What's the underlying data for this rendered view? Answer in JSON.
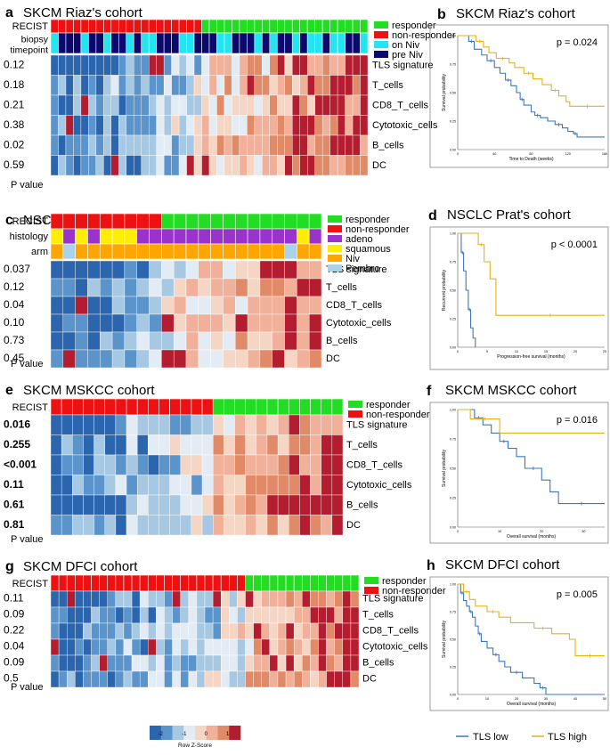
{
  "colors": {
    "responder": "#22dd22",
    "non_responder": "#ee1111",
    "on_niv": "#22e5f0",
    "pre_niv": "#0a0a6e",
    "adeno": "#9933cc",
    "squamous": "#ffee00",
    "niv": "#ffa500",
    "pembro": "#a9d3ea",
    "tls_low": "#3a78c3",
    "tls_high": "#e6b21a",
    "zscale": [
      "#2b65ae",
      "#5b93cb",
      "#a7c8e2",
      "#e3ecf4",
      "#f5d6c4",
      "#f0b09a",
      "#e08a67",
      "#b41d2f"
    ]
  },
  "common": {
    "p_value_label": "P value",
    "row_labels": [
      "TLS signature",
      "T_cells",
      "CD8_T_cells",
      "Cytotoxic_cells",
      "B_cells",
      "DC"
    ]
  },
  "colorbar": {
    "title": "Row Z-Score",
    "ticks": [
      "-2",
      "-1",
      "0",
      "1"
    ]
  },
  "legend": {
    "tls_low": "TLS low",
    "tls_high": "TLS high"
  },
  "panels": [
    {
      "id": "a",
      "letter": "a",
      "title": "SKCM Riaz's cohort",
      "n": 42,
      "nonresp": 20,
      "annotations": [
        {
          "label": "RECIST",
          "kind": "recist"
        },
        {
          "label": "biopsy",
          "label2": "timepoint",
          "kind": "biopsy",
          "pattern": [
            0,
            1,
            1,
            1,
            0,
            1,
            1,
            0,
            1,
            1,
            0,
            1,
            0,
            0,
            1,
            1,
            1,
            0,
            0,
            1,
            1,
            1,
            0,
            0,
            1,
            1,
            1,
            0,
            1,
            0,
            1,
            1,
            0,
            1,
            0,
            0,
            1,
            0,
            0,
            1,
            1,
            0
          ]
        }
      ],
      "legend": [
        {
          "label": "responder",
          "color_key": "responder"
        },
        {
          "label": "non-responder",
          "color_key": "non_responder"
        },
        {
          "label": "on Niv",
          "color_key": "on_niv"
        },
        {
          "label": "pre Niv",
          "color_key": "pre_niv"
        }
      ],
      "pvalues": [
        "0.12",
        "0.18",
        "0.21",
        "0.38",
        "0.02",
        "0.59"
      ],
      "bold": false
    },
    {
      "id": "c",
      "letter": "c",
      "title": "NSCLC Prat's cohort",
      "n": 22,
      "nonresp": 9,
      "annotations": [
        {
          "label": "RECIST",
          "kind": "recist"
        },
        {
          "label": "histology",
          "kind": "histology",
          "pattern": [
            1,
            0,
            1,
            0,
            1,
            1,
            1,
            0,
            0,
            0,
            0,
            0,
            0,
            0,
            0,
            0,
            0,
            0,
            0,
            0,
            1,
            0
          ]
        },
        {
          "label": "arm",
          "kind": "arm",
          "pattern": [
            0,
            1,
            0,
            0,
            0,
            0,
            0,
            0,
            0,
            0,
            0,
            0,
            0,
            0,
            0,
            0,
            0,
            0,
            0,
            1,
            0,
            0
          ]
        }
      ],
      "legend": [
        {
          "label": "responder",
          "color_key": "responder"
        },
        {
          "label": "non-responder",
          "color_key": "non_responder"
        },
        {
          "label": "adeno",
          "color_key": "adeno"
        },
        {
          "label": "squamous",
          "color_key": "squamous"
        },
        {
          "label": "Niv",
          "color_key": "niv"
        },
        {
          "label": "Pembro",
          "color_key": "pembro"
        }
      ],
      "pvalues": [
        "0.037",
        "0.12",
        "0.04",
        "0.10",
        "0.73",
        "0.45"
      ],
      "bold": false
    },
    {
      "id": "e",
      "letter": "e",
      "title": "SKCM MSKCC cohort",
      "n": 27,
      "nonresp": 15,
      "annotations": [
        {
          "label": "RECIST",
          "kind": "recist"
        }
      ],
      "legend": [
        {
          "label": "responder",
          "color_key": "responder"
        },
        {
          "label": "non-responder",
          "color_key": "non_responder"
        }
      ],
      "pvalues": [
        "0.016",
        "0.255",
        "<0.001",
        "0.11",
        "0.61",
        "0.81"
      ],
      "bold": true
    },
    {
      "id": "g",
      "letter": "g",
      "title": "SKCM DFCI cohort",
      "n": 38,
      "nonresp": 24,
      "annotations": [
        {
          "label": "RECIST",
          "kind": "recist"
        }
      ],
      "legend": [
        {
          "label": "responder",
          "color_key": "responder"
        },
        {
          "label": "non-responder",
          "color_key": "non_responder"
        }
      ],
      "pvalues": [
        "0.11",
        "0.09",
        "0.22",
        "0.04",
        "0.09",
        "0.5"
      ],
      "bold": false
    }
  ],
  "chart_data": [
    {
      "type": "heatmap",
      "panel": "a",
      "title": "SKCM Riaz's cohort",
      "rows": [
        "TLS signature",
        "T_cells",
        "CD8_T_cells",
        "Cytotoxic_cells",
        "B_cells",
        "DC"
      ],
      "p_values": [
        "0.12",
        "0.18",
        "0.21",
        "0.38",
        "0.02",
        "0.59"
      ],
      "colorbar": {
        "title": "Row Z-Score",
        "range": [
          -2,
          1
        ]
      }
    },
    {
      "type": "line",
      "panel": "b",
      "title": "SKCM Riaz's cohort",
      "xlabel": "Time to Death (weeks)",
      "ylabel": "Survival probability",
      "p_label": "p = 0.024",
      "xlim": [
        0,
        160
      ],
      "ylim": [
        0,
        1
      ],
      "xticks": [
        0,
        40,
        80,
        120,
        160
      ],
      "yticks": [
        "0.00",
        "0.25",
        "0.50",
        "0.75",
        "1.00"
      ],
      "series": [
        {
          "name": "TLS low",
          "x": [
            0,
            12,
            18,
            26,
            32,
            40,
            46,
            52,
            58,
            64,
            68,
            72,
            80,
            84,
            90,
            98,
            106,
            114,
            120,
            126,
            130,
            160
          ],
          "y": [
            1.0,
            0.95,
            0.88,
            0.83,
            0.78,
            0.72,
            0.67,
            0.61,
            0.56,
            0.5,
            0.44,
            0.39,
            0.33,
            0.3,
            0.28,
            0.25,
            0.22,
            0.19,
            0.16,
            0.14,
            0.11,
            0.11
          ]
        },
        {
          "name": "TLS high",
          "x": [
            0,
            20,
            28,
            34,
            42,
            56,
            62,
            72,
            82,
            92,
            102,
            110,
            118,
            122,
            160
          ],
          "y": [
            1.0,
            0.95,
            0.9,
            0.85,
            0.8,
            0.76,
            0.72,
            0.67,
            0.62,
            0.57,
            0.52,
            0.47,
            0.42,
            0.38,
            0.38
          ]
        }
      ]
    },
    {
      "type": "heatmap",
      "panel": "c",
      "title": "NSCLC Prat's cohort",
      "rows": [
        "TLS signature",
        "T_cells",
        "CD8_T_cells",
        "Cytotoxic_cells",
        "B_cells",
        "DC"
      ],
      "p_values": [
        "0.037",
        "0.12",
        "0.04",
        "0.10",
        "0.73",
        "0.45"
      ]
    },
    {
      "type": "line",
      "panel": "d",
      "title": "NSCLC Prat's cohort",
      "xlabel": "Progression-free survival (months)",
      "ylabel": "Recurrent probability",
      "p_label": "p < 0.0001",
      "xlim": [
        0,
        25
      ],
      "ylim": [
        0,
        1
      ],
      "xticks": [
        0,
        5,
        10,
        15,
        20,
        25
      ],
      "yticks": [
        "0.00",
        "0.25",
        "0.50",
        "0.75",
        "1.00"
      ],
      "series": [
        {
          "name": "TLS low",
          "x": [
            0,
            0.6,
            1.0,
            1.4,
            1.8,
            2.2,
            2.6,
            3.0
          ],
          "y": [
            1.0,
            0.83,
            0.67,
            0.5,
            0.33,
            0.17,
            0.08,
            0.0
          ]
        },
        {
          "name": "TLS high",
          "x": [
            0,
            3.5,
            4.5,
            5.5,
            6.5,
            25
          ],
          "y": [
            1.0,
            0.9,
            0.75,
            0.6,
            0.28,
            0.28
          ]
        }
      ]
    },
    {
      "type": "heatmap",
      "panel": "e",
      "title": "SKCM MSKCC cohort",
      "rows": [
        "TLS signature",
        "T_cells",
        "CD8_T_cells",
        "Cytotoxic_cells",
        "B_cells",
        "DC"
      ],
      "p_values": [
        "0.016",
        "0.255",
        "<0.001",
        "0.11",
        "0.61",
        "0.81"
      ]
    },
    {
      "type": "line",
      "panel": "f",
      "title": "SKCM MSKCC cohort",
      "xlabel": "Overall survival (months)",
      "ylabel": "Survival probability",
      "p_label": "p = 0.016",
      "xlim": [
        0,
        35
      ],
      "ylim": [
        0,
        1
      ],
      "xticks": [
        0,
        10,
        20,
        30
      ],
      "yticks": [
        "0.00",
        "0.25",
        "0.50",
        "0.75",
        "1.00"
      ],
      "series": [
        {
          "name": "TLS low",
          "x": [
            0,
            4,
            6,
            8,
            10,
            12,
            14,
            16,
            20,
            22,
            24,
            35
          ],
          "y": [
            1.0,
            0.93,
            0.87,
            0.8,
            0.73,
            0.67,
            0.6,
            0.5,
            0.4,
            0.3,
            0.2,
            0.2
          ]
        },
        {
          "name": "TLS high",
          "x": [
            0,
            3,
            10,
            35
          ],
          "y": [
            1.0,
            0.92,
            0.8,
            0.8
          ]
        }
      ]
    },
    {
      "type": "heatmap",
      "panel": "g",
      "title": "SKCM DFCI cohort",
      "rows": [
        "TLS signature",
        "T_cells",
        "CD8_T_cells",
        "Cytotoxic_cells",
        "B_cells",
        "DC"
      ],
      "p_values": [
        "0.11",
        "0.09",
        "0.22",
        "0.04",
        "0.09",
        "0.5"
      ]
    },
    {
      "type": "line",
      "panel": "h",
      "title": "SKCM DFCI cohort",
      "xlabel": "Overall survival (months)",
      "ylabel": "Survival probability",
      "p_label": "p = 0.005",
      "xlim": [
        0,
        50
      ],
      "ylim": [
        0,
        1
      ],
      "xticks": [
        0,
        10,
        20,
        30,
        40,
        50
      ],
      "yticks": [
        "0.00",
        "0.25",
        "0.50",
        "0.75",
        "1.00"
      ],
      "series": [
        {
          "name": "TLS low",
          "x": [
            0,
            1,
            2,
            3,
            4,
            5,
            6,
            7,
            8,
            10,
            12,
            14,
            16,
            18,
            22,
            26,
            28,
            30,
            50
          ],
          "y": [
            1.0,
            0.92,
            0.85,
            0.8,
            0.75,
            0.7,
            0.62,
            0.55,
            0.48,
            0.42,
            0.36,
            0.3,
            0.25,
            0.2,
            0.15,
            0.1,
            0.06,
            0.0,
            0.0
          ]
        },
        {
          "name": "TLS high",
          "x": [
            0,
            2,
            4,
            6,
            10,
            14,
            18,
            26,
            32,
            38,
            40,
            50
          ],
          "y": [
            1.0,
            0.93,
            0.86,
            0.8,
            0.75,
            0.7,
            0.65,
            0.6,
            0.55,
            0.5,
            0.35,
            0.35
          ]
        }
      ]
    }
  ]
}
